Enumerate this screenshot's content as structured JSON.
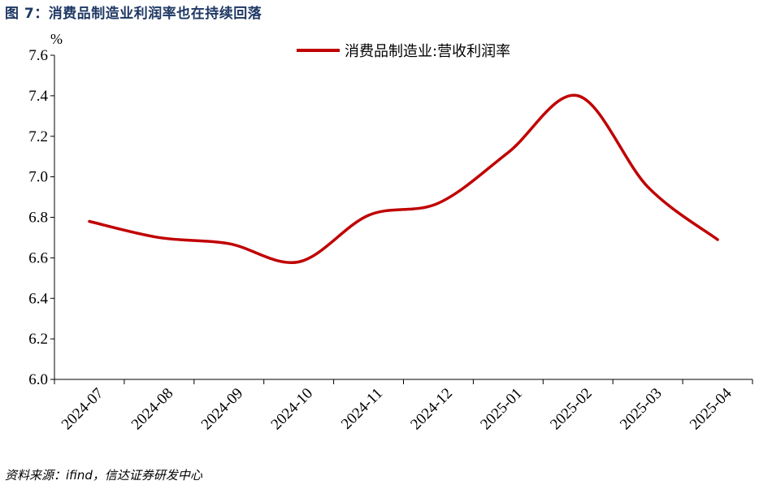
{
  "title": {
    "label": "图 7：消费品制造业利润率也在持续回落"
  },
  "source": {
    "text": "资料来源：ifind，信达证券研发中心"
  },
  "colors": {
    "series": "#c00000",
    "title": "#1f3864",
    "axis": "#000000"
  },
  "chart_data": {
    "type": "line",
    "title": "",
    "xlabel": "",
    "ylabel": "",
    "unit": "%",
    "categories": [
      "2024-07",
      "2024-08",
      "2024-09",
      "2024-10",
      "2024-11",
      "2024-12",
      "2025-01",
      "2025-02",
      "2025-03",
      "2025-04"
    ],
    "series": [
      {
        "name": "消费品制造业:营收利润率",
        "values": [
          6.78,
          6.7,
          6.67,
          6.58,
          6.81,
          6.87,
          7.12,
          7.4,
          6.95,
          6.69
        ]
      }
    ],
    "ylim": [
      6.0,
      7.6
    ],
    "yticks": [
      "6.0",
      "6.2",
      "6.4",
      "6.6",
      "6.8",
      "7.0",
      "7.2",
      "7.4",
      "7.6"
    ],
    "grid": false,
    "legend": "top-right"
  }
}
